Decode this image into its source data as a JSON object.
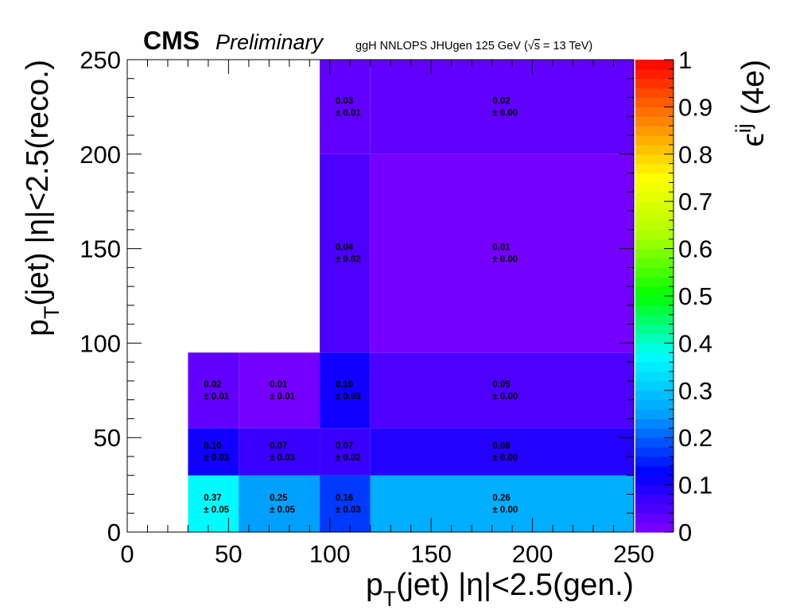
{
  "header": {
    "experiment": "CMS",
    "status": "Preliminary",
    "sample_prefix": "ggH NNLOPS JHUgen 125 GeV (",
    "sqrt_s": "s",
    "energy_suffix": " = 13 TeV)"
  },
  "chart_data": {
    "type": "heatmap",
    "xlabel_main": "p",
    "xlabel_sub": "T",
    "xlabel_rest": "(jet) |η|<2.5(gen.)",
    "ylabel_main": "p",
    "ylabel_sub": "T",
    "ylabel_rest": "(jet) |η|<2.5(reco.)",
    "zlabel_main": "ϵ",
    "zlabel_sup": "ij",
    "zlabel_rest": " (4e)",
    "xlim": [
      0,
      250
    ],
    "ylim": [
      0,
      250
    ],
    "zlim": [
      0,
      1
    ],
    "x_ticks": [
      "0",
      "50",
      "100",
      "150",
      "200",
      "250"
    ],
    "y_ticks": [
      "0",
      "50",
      "100",
      "150",
      "200",
      "250"
    ],
    "z_ticks": [
      "0",
      "0.1",
      "0.2",
      "0.3",
      "0.4",
      "0.5",
      "0.6",
      "0.7",
      "0.8",
      "0.9",
      "1"
    ],
    "x_bin_edges": [
      30,
      55,
      95,
      120,
      250
    ],
    "y_bin_edges": [
      0,
      30,
      55,
      95,
      200,
      250
    ],
    "palette": [
      "#8000ff",
      "#0000ff",
      "#00a0ff",
      "#00ffff",
      "#00ff00",
      "#aaff00",
      "#ffff00",
      "#ff8000",
      "#ff0000"
    ],
    "cells": [
      {
        "xi": 0,
        "yi": 0,
        "value": 0.37,
        "text": "0.37",
        "err": "± 0.05"
      },
      {
        "xi": 1,
        "yi": 0,
        "value": 0.25,
        "text": "0.25",
        "err": "± 0.05"
      },
      {
        "xi": 2,
        "yi": 0,
        "value": 0.16,
        "text": "0.16",
        "err": "± 0.03"
      },
      {
        "xi": 3,
        "yi": 0,
        "value": 0.26,
        "text": "0.26",
        "err": "± 0.00"
      },
      {
        "xi": 0,
        "yi": 1,
        "value": 0.1,
        "text": "0.10",
        "err": "± 0.03"
      },
      {
        "xi": 1,
        "yi": 1,
        "value": 0.07,
        "text": "0.07",
        "err": "± 0.03"
      },
      {
        "xi": 2,
        "yi": 1,
        "value": 0.07,
        "text": "0.07",
        "err": "± 0.02"
      },
      {
        "xi": 3,
        "yi": 1,
        "value": 0.08,
        "text": "0.08",
        "err": "± 0.00"
      },
      {
        "xi": 0,
        "yi": 2,
        "value": 0.02,
        "text": "0.02",
        "err": "± 0.01"
      },
      {
        "xi": 1,
        "yi": 2,
        "value": 0.01,
        "text": "0.01",
        "err": "± 0.01"
      },
      {
        "xi": 2,
        "yi": 2,
        "value": 0.1,
        "text": "0.10",
        "err": "± 0.03"
      },
      {
        "xi": 3,
        "yi": 2,
        "value": 0.05,
        "text": "0.05",
        "err": "± 0.00"
      },
      {
        "xi": 2,
        "yi": 3,
        "value": 0.04,
        "text": "0.04",
        "err": "± 0.02"
      },
      {
        "xi": 3,
        "yi": 3,
        "value": 0.01,
        "text": "0.01",
        "err": "± 0.00"
      },
      {
        "xi": 2,
        "yi": 4,
        "value": 0.03,
        "text": "0.03",
        "err": "± 0.01"
      },
      {
        "xi": 3,
        "yi": 4,
        "value": 0.02,
        "text": "0.02",
        "err": "± 0.00"
      }
    ]
  }
}
